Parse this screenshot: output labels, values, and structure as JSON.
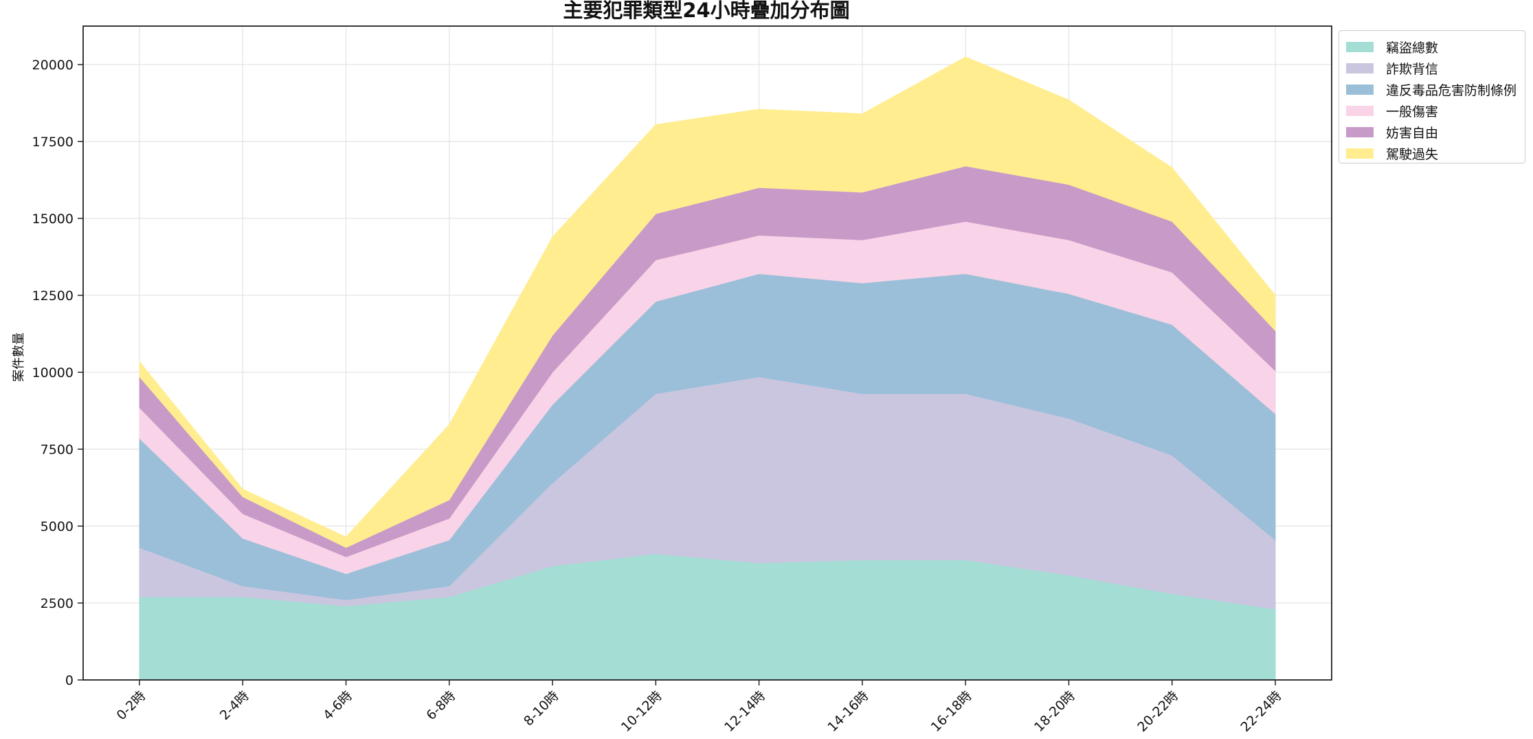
{
  "chart_data": {
    "type": "area",
    "stacked": true,
    "title": "主要犯罪類型24小時疊加分布圖",
    "xlabel": "",
    "ylabel": "案件數量",
    "ylim": [
      0,
      21250
    ],
    "yticks": [
      0,
      2500,
      5000,
      7500,
      10000,
      12500,
      15000,
      17500,
      20000
    ],
    "categories": [
      "0-2時",
      "2-4時",
      "4-6時",
      "6-8時",
      "8-10時",
      "10-12時",
      "12-14時",
      "14-16時",
      "16-18時",
      "18-20時",
      "20-22時",
      "22-24時"
    ],
    "grid": true,
    "legend_position": "outside-top-right",
    "series": [
      {
        "name": "竊盜總數",
        "color": "#a3ddd3",
        "values": [
          2700,
          2700,
          2400,
          2700,
          3700,
          4100,
          3800,
          3900,
          3900,
          3400,
          2800,
          2300
        ]
      },
      {
        "name": "詐欺背信",
        "color": "#cbc6e0",
        "values": [
          1600,
          350,
          200,
          350,
          2700,
          5200,
          6050,
          5400,
          5400,
          5100,
          4500,
          2250
        ]
      },
      {
        "name": "違反毒品危害防制條例",
        "color": "#9bbfd9",
        "values": [
          3550,
          1550,
          850,
          1500,
          2550,
          3000,
          3350,
          3600,
          3900,
          4050,
          4250,
          4100
        ]
      },
      {
        "name": "一般傷害",
        "color": "#f9d3e7",
        "values": [
          1000,
          800,
          550,
          700,
          1050,
          1350,
          1250,
          1400,
          1700,
          1750,
          1700,
          1400
        ]
      },
      {
        "name": "妨害自由",
        "color": "#c89ac8",
        "values": [
          1000,
          550,
          300,
          600,
          1200,
          1500,
          1550,
          1550,
          1800,
          1800,
          1650,
          1300
        ]
      },
      {
        "name": "駕駛過失",
        "color": "#ffed8f",
        "values": [
          500,
          250,
          350,
          2450,
          3200,
          2900,
          2550,
          2550,
          3550,
          2750,
          1750,
          1150
        ]
      }
    ]
  }
}
